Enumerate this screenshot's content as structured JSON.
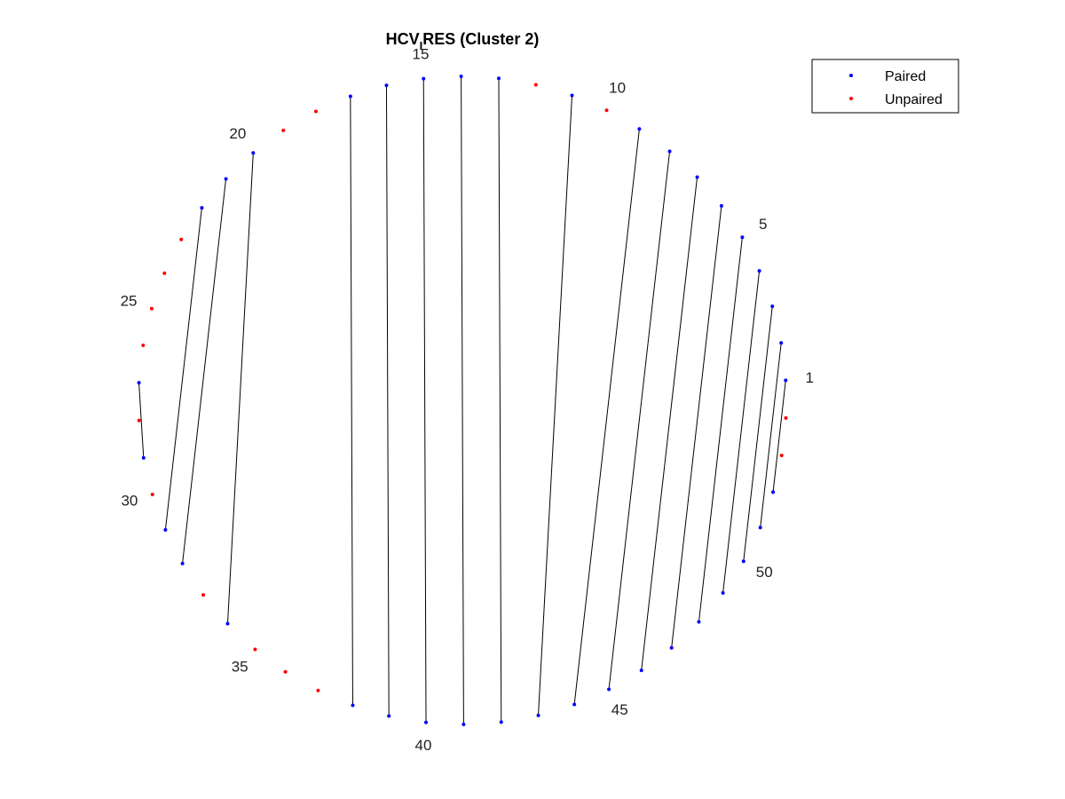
{
  "title": {
    "main": "HCV",
    "subscript": "I",
    "rest": "RES (Cluster 2)"
  },
  "legend": {
    "placement": "top-right",
    "items": [
      {
        "label": "Paired",
        "color": "#0000ff"
      },
      {
        "label": "Unpaired",
        "color": "#ff0000"
      }
    ]
  },
  "chart_data": {
    "type": "arc-diagram-circular",
    "n_positions": 54,
    "start_position": 1,
    "labeled_positions": [
      "1",
      "5",
      "10",
      "15",
      "20",
      "25",
      "30",
      "35",
      "40",
      "45",
      "50"
    ],
    "pairs": [
      [
        1,
        52
      ],
      [
        2,
        51
      ],
      [
        3,
        50
      ],
      [
        4,
        49
      ],
      [
        5,
        48
      ],
      [
        6,
        47
      ],
      [
        7,
        46
      ],
      [
        8,
        45
      ],
      [
        9,
        44
      ],
      [
        11,
        43
      ],
      [
        13,
        42
      ],
      [
        14,
        41
      ],
      [
        15,
        40
      ],
      [
        16,
        39
      ],
      [
        17,
        38
      ],
      [
        20,
        34
      ],
      [
        21,
        32
      ],
      [
        22,
        31
      ],
      [
        27,
        29
      ]
    ],
    "unpaired": [
      10,
      12,
      18,
      19,
      23,
      24,
      25,
      26,
      28,
      30,
      33,
      35,
      36,
      37,
      53,
      54
    ],
    "paired_color": "#0000ff",
    "unpaired_color": "#ff0000",
    "line_color": "#000000"
  }
}
